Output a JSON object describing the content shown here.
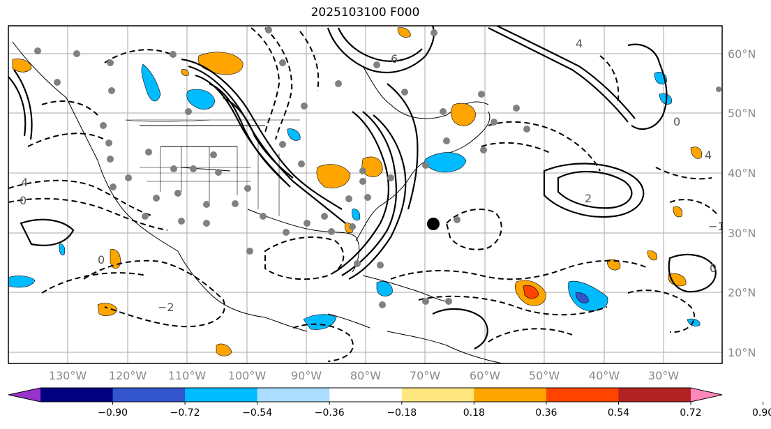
{
  "title": "2025103100 F000",
  "lat_labels": [
    "60°N",
    "50°N",
    "40°N",
    "30°N",
    "20°N",
    "10°N"
  ],
  "lon_labels": [
    "130°W",
    "120°W",
    "110°W",
    "100°W",
    "90°W",
    "80°W",
    "70°W",
    "60°W",
    "50°W",
    "40°W",
    "30°W"
  ],
  "colorbar": {
    "ticks": [
      "−0.90",
      "−0.72",
      "−0.54",
      "−0.36",
      "−0.18",
      "0.18",
      "0.36",
      "0.54",
      "0.72",
      "0.90"
    ],
    "colors": [
      "#9933cc",
      "#000080",
      "#3355cc",
      "#00bbff",
      "#aaddff",
      "#ffffff",
      "#ffe680",
      "#ffa500",
      "#ff4400",
      "#b22222",
      "#ff88bb"
    ]
  },
  "contour_labels": [
    "4",
    "2",
    "0",
    "−2",
    "−4",
    "6",
    "−1"
  ],
  "colors": {
    "frame": "#000000",
    "grid": "#aaaaaa",
    "station": "#808080"
  }
}
